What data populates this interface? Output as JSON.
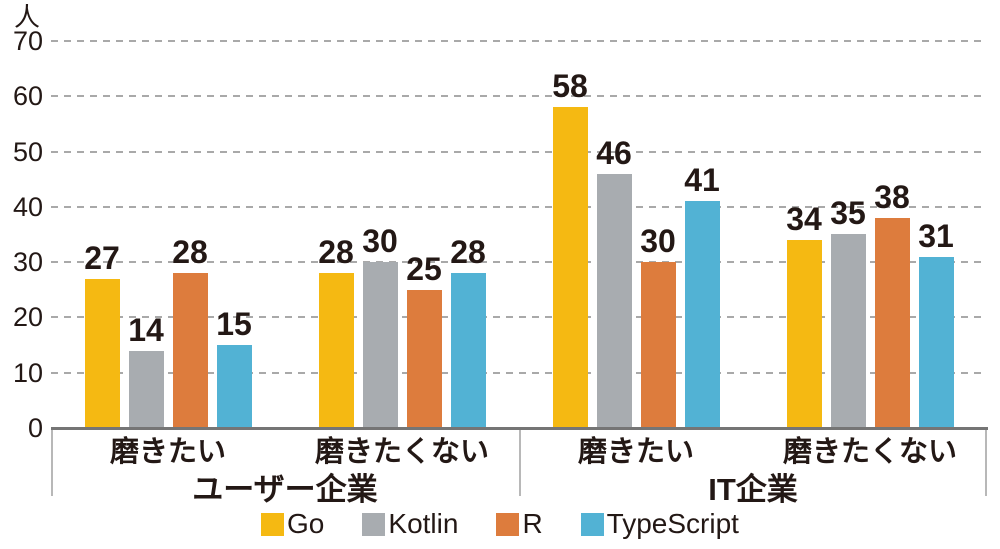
{
  "chart_data": {
    "type": "bar",
    "title": "",
    "unit_label": "人",
    "ylabel": "人",
    "ylim": [
      0,
      70
    ],
    "yticks": [
      0,
      10,
      20,
      30,
      40,
      50,
      60,
      70
    ],
    "grid": "horizontal-dashed",
    "legend_position": "bottom",
    "categories": [
      "磨きたい",
      "磨きたくない",
      "磨きたい",
      "磨きたくない"
    ],
    "sections": [
      {
        "label": "ユーザー企業",
        "categories": [
          "磨きたい",
          "磨きたくない"
        ]
      },
      {
        "label": "IT企業",
        "categories": [
          "磨きたい",
          "磨きたくない"
        ]
      }
    ],
    "series": [
      {
        "name": "Go",
        "color": "#F5B912",
        "values": [
          27,
          28,
          58,
          34
        ]
      },
      {
        "name": "Kotlin",
        "color": "#A8ACB0",
        "values": [
          14,
          30,
          46,
          35
        ]
      },
      {
        "name": "R",
        "color": "#DD7C3D",
        "values": [
          28,
          25,
          30,
          38
        ]
      },
      {
        "name": "TypeScript",
        "color": "#52B2D4",
        "values": [
          15,
          28,
          41,
          31
        ]
      }
    ]
  },
  "colors": {
    "text": "#231815",
    "gridline": "#A9A9A9",
    "axis": "#757575",
    "bracket": "#B8B8B8",
    "background": "#FFFFFF"
  }
}
